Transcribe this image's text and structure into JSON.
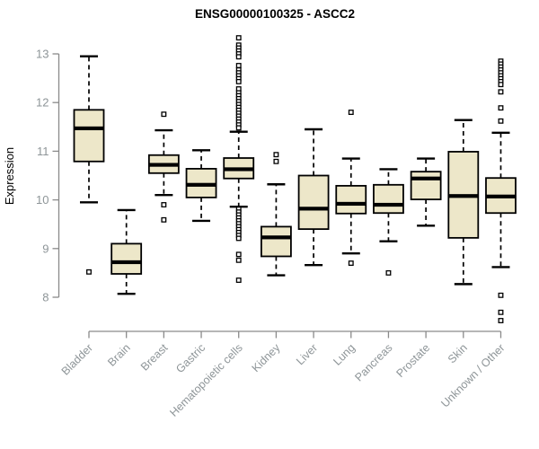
{
  "title": "ENSG00000100325 - ASCC2",
  "colors": {
    "background": "#ffffff",
    "box_fill": "#EDE7C9",
    "box_stroke": "#000000",
    "median": "#000000",
    "whisker": "#000000",
    "outlier_stroke": "#000000",
    "outlier_fill": "#ffffff",
    "axis_line": "#8a8a8a",
    "tick_text": "#8e9598",
    "title_text": "#000000"
  },
  "chart_data": {
    "type": "boxplot",
    "title": "ENSG00000100325 - ASCC2",
    "xlabel": "",
    "ylabel": "Expression",
    "ylim": [
      7.4,
      13.5
    ],
    "yticks": [
      8,
      9,
      10,
      11,
      12,
      13
    ],
    "grid": false,
    "legend": "none",
    "categories": [
      "Bladder",
      "Brain",
      "Breast",
      "Gastric",
      "Hematopoietic cells",
      "Kidney",
      "Liver",
      "Lung",
      "Pancreas",
      "Prostate",
      "Skin",
      "Unknown / Other"
    ],
    "series": [
      {
        "category": "Bladder",
        "low": 9.95,
        "q1": 10.79,
        "median": 11.47,
        "q3": 11.85,
        "high": 12.95,
        "outliers": [
          8.52
        ]
      },
      {
        "category": "Brain",
        "low": 8.07,
        "q1": 8.48,
        "median": 8.72,
        "q3": 9.1,
        "high": 9.79,
        "outliers": []
      },
      {
        "category": "Breast",
        "low": 10.1,
        "q1": 10.55,
        "median": 10.72,
        "q3": 10.92,
        "high": 11.43,
        "outliers": [
          11.76,
          9.9,
          9.59
        ]
      },
      {
        "category": "Gastric",
        "low": 9.57,
        "q1": 10.05,
        "median": 10.31,
        "q3": 10.64,
        "high": 11.02,
        "outliers": []
      },
      {
        "category": "Hematopoietic cells",
        "low": 9.86,
        "q1": 10.44,
        "median": 10.63,
        "q3": 10.86,
        "high": 11.4,
        "outliers": [
          13.33,
          13.18,
          13.12,
          13.06,
          13.0,
          12.94,
          12.76,
          12.67,
          12.61,
          12.55,
          12.49,
          12.43,
          12.28,
          12.2,
          12.14,
          12.08,
          12.02,
          11.96,
          11.9,
          11.84,
          11.78,
          11.72,
          11.66,
          11.6,
          11.54,
          11.48,
          9.81,
          9.75,
          9.69,
          9.63,
          9.57,
          9.51,
          9.45,
          9.39,
          9.33,
          9.27,
          9.21,
          8.88,
          8.76,
          8.35
        ]
      },
      {
        "category": "Kidney",
        "low": 8.45,
        "q1": 8.84,
        "median": 9.23,
        "q3": 9.45,
        "high": 10.32,
        "outliers": [
          10.93,
          10.79
        ]
      },
      {
        "category": "Liver",
        "low": 8.66,
        "q1": 9.4,
        "median": 9.82,
        "q3": 10.5,
        "high": 11.45,
        "outliers": []
      },
      {
        "category": "Lung",
        "low": 8.9,
        "q1": 9.72,
        "median": 9.92,
        "q3": 10.29,
        "high": 10.85,
        "outliers": [
          11.8,
          8.7
        ]
      },
      {
        "category": "Pancreas",
        "low": 9.15,
        "q1": 9.73,
        "median": 9.9,
        "q3": 10.31,
        "high": 10.63,
        "outliers": [
          8.5
        ]
      },
      {
        "category": "Prostate",
        "low": 9.47,
        "q1": 10.01,
        "median": 10.44,
        "q3": 10.58,
        "high": 10.85,
        "outliers": []
      },
      {
        "category": "Skin",
        "low": 8.27,
        "q1": 9.22,
        "median": 10.08,
        "q3": 10.99,
        "high": 11.64,
        "outliers": []
      },
      {
        "category": "Unknown / Other",
        "low": 8.62,
        "q1": 9.73,
        "median": 10.07,
        "q3": 10.45,
        "high": 11.38,
        "outliers": [
          12.85,
          12.79,
          12.73,
          12.67,
          12.61,
          12.55,
          12.49,
          12.43,
          12.37,
          12.22,
          11.89,
          11.62,
          8.04,
          7.69,
          7.52
        ]
      }
    ]
  }
}
